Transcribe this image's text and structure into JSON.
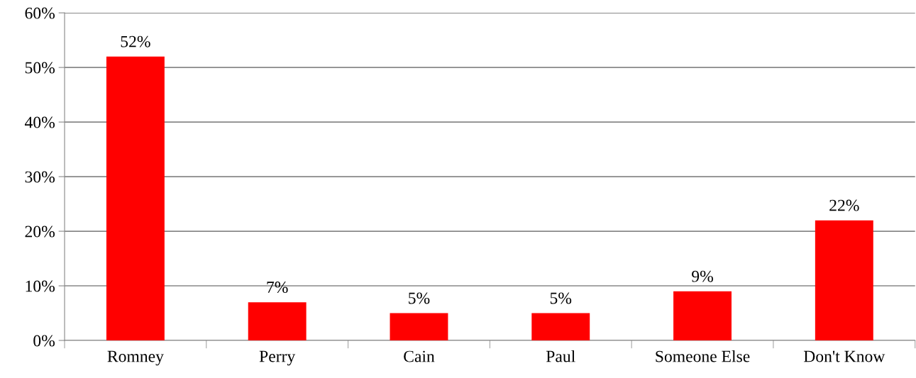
{
  "chart_data": {
    "type": "bar",
    "categories": [
      "Romney",
      "Perry",
      "Cain",
      "Paul",
      "Someone Else",
      "Don't Know"
    ],
    "values": [
      52,
      7,
      5,
      5,
      9,
      22
    ],
    "value_labels": [
      "52%",
      "7%",
      "5%",
      "5%",
      "9%",
      "22%"
    ],
    "color": "#ff0000",
    "ylim": [
      0,
      60
    ],
    "yticks": [
      {
        "value": 0,
        "label": "0%"
      },
      {
        "value": 10,
        "label": "10%"
      },
      {
        "value": 20,
        "label": "20%"
      },
      {
        "value": 30,
        "label": "30%"
      },
      {
        "value": 40,
        "label": "40%"
      },
      {
        "value": 50,
        "label": "50%"
      },
      {
        "value": 60,
        "label": "60%"
      }
    ],
    "grid": "y",
    "legend": false
  }
}
